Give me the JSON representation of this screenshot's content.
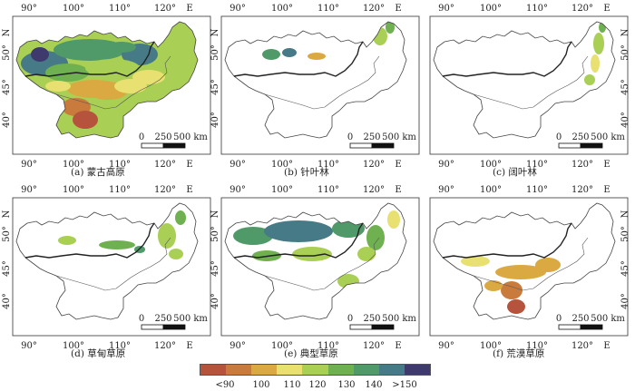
{
  "map_data": {
    "panels": [
      {
        "id": "a",
        "caption": "(a) 蒙古高原",
        "type": "full"
      },
      {
        "id": "b",
        "caption": "(b) 针叶林",
        "type": "conifer"
      },
      {
        "id": "c",
        "caption": "(c) 阔叶林",
        "type": "broadleaf"
      },
      {
        "id": "d",
        "caption": "(d) 草甸草原",
        "type": "meadow"
      },
      {
        "id": "e",
        "caption": "(e) 典型草原",
        "type": "typical"
      },
      {
        "id": "f",
        "caption": "(f) 荒漠草原",
        "type": "desert"
      }
    ],
    "lon_ticks": [
      "90°",
      "100°",
      "110°",
      "120°",
      "E"
    ],
    "lat_ticks": [
      "50°",
      "45°",
      "40°",
      "N"
    ],
    "scale_bar": {
      "labels": [
        "0",
        "250",
        "500 km"
      ]
    },
    "legend": {
      "colors": [
        "#b5533c",
        "#c87b3c",
        "#dba941",
        "#e8e070",
        "#a9cf55",
        "#6fb050",
        "#4f9a68",
        "#467a86",
        "#3e3a6e"
      ],
      "labels": [
        "<90",
        "100",
        "110",
        "120",
        "130",
        "140",
        ">150"
      ]
    }
  }
}
